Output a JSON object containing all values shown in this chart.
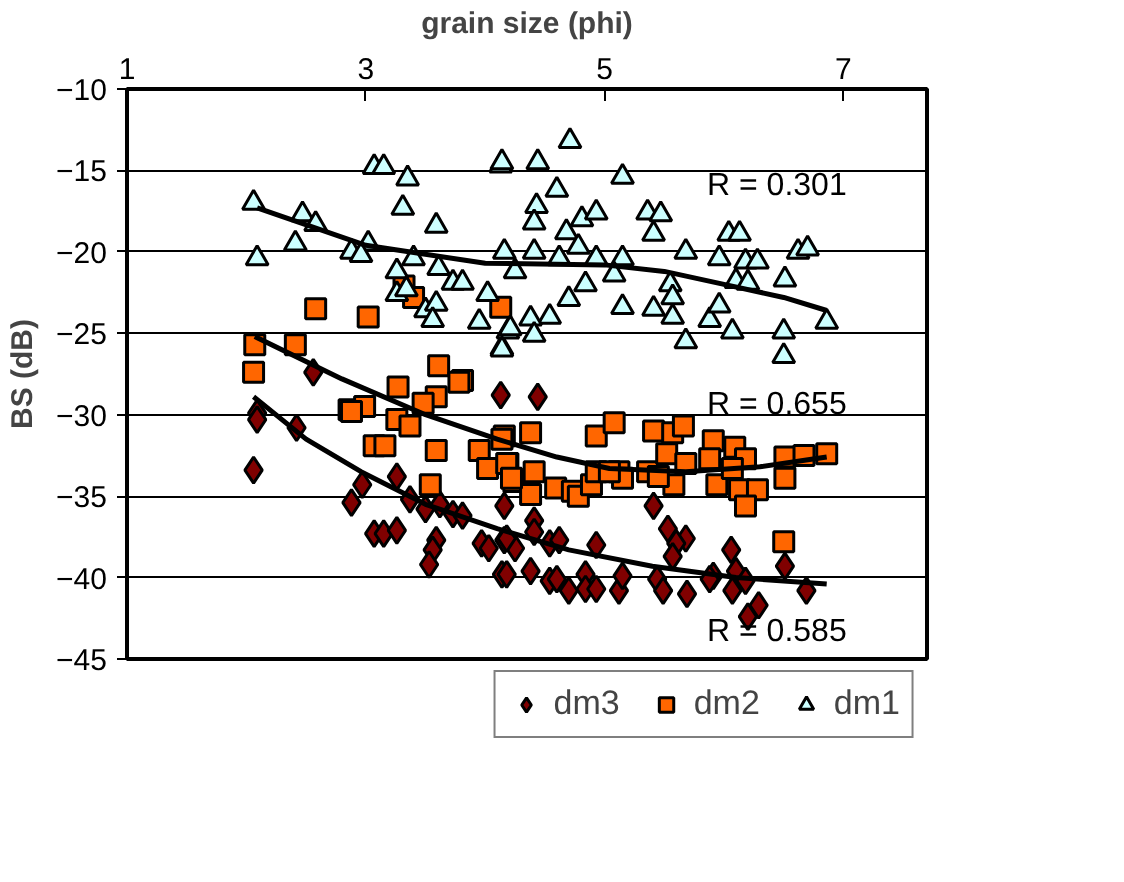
{
  "chart_data": {
    "type": "scatter",
    "xlabel": "grain size (phi)",
    "ylabel": "BS (dB)",
    "xlim": [
      1,
      7.7
    ],
    "xticks": [
      1,
      3,
      5,
      7
    ],
    "ylim": [
      -45,
      -10
    ],
    "yticks": [
      -45,
      -40,
      -35,
      -30,
      -25,
      -20,
      -15,
      -10
    ],
    "grid": "y",
    "legend": "bottom",
    "series": [
      {
        "name": "dm3",
        "color": "#800000",
        "marker": "diamond",
        "x": [
          2.56,
          4.13,
          2.09,
          2.09,
          2.42,
          2.06,
          2.97,
          2.88,
          3.26,
          3.37,
          3.5,
          3.62,
          3.73,
          3.81,
          3.07,
          3.15,
          3.26,
          3.59,
          3.56,
          3.53,
          4.16,
          3.97,
          4.03,
          4.16,
          4.25,
          4.14,
          4.44,
          4.41,
          4.18,
          4.41,
          4.54,
          4.62,
          4.93,
          4.18,
          4.38,
          4.54,
          4.6,
          4.7,
          4.84,
          4.84,
          4.93,
          5.12,
          5.15,
          5.41,
          5.53,
          5.68,
          5.6,
          5.57,
          5.44,
          5.49,
          5.69,
          5.91,
          5.88,
          6.06,
          6.1,
          6.07,
          6.18,
          6.2,
          6.29,
          6.51,
          6.69
        ],
        "values": [
          -27.4,
          -28.8,
          -29.9,
          -30.3,
          -30.8,
          -33.4,
          -34.3,
          -35.4,
          -33.8,
          -35.2,
          -35.8,
          -35.5,
          -36.1,
          -36.2,
          -37.3,
          -37.3,
          -37.1,
          -37.7,
          -38.3,
          -39.2,
          -35.6,
          -37.9,
          -38.2,
          -37.7,
          -38.2,
          -39.8,
          -28.9,
          -36.5,
          -37.6,
          -37.2,
          -37.9,
          -37.7,
          -38.0,
          -39.8,
          -39.6,
          -40.2,
          -40.1,
          -40.8,
          -39.8,
          -40.7,
          -40.7,
          -40.8,
          -39.9,
          -35.6,
          -37.0,
          -37.6,
          -37.9,
          -38.7,
          -40.1,
          -40.8,
          -41.0,
          -39.9,
          -40.1,
          -38.3,
          -39.6,
          -40.8,
          -40.2,
          -42.4,
          -41.7,
          -39.3,
          -40.8
        ]
      },
      {
        "name": "dm2",
        "color": "#ff6600",
        "marker": "square",
        "x": [
          2.58,
          3.02,
          2.07,
          2.41,
          2.06,
          3.32,
          3.4,
          4.13,
          3.61,
          3.81,
          3.27,
          2.86,
          2.99,
          3.59,
          3.78,
          3.48,
          2.88,
          3.26,
          3.37,
          3.07,
          3.16,
          3.59,
          3.95,
          4.16,
          4.19,
          4.02,
          4.24,
          3.54,
          4.14,
          4.18,
          4.38,
          4.41,
          4.38,
          4.22,
          4.59,
          4.73,
          4.78,
          4.89,
          4.93,
          4.93,
          5.08,
          5.12,
          5.15,
          5.36,
          5.41,
          5.57,
          5.66,
          5.52,
          5.58,
          5.45,
          5.68,
          5.91,
          5.88,
          6.09,
          6.18,
          5.94,
          6.13,
          6.28,
          6.18,
          6.07,
          6.51,
          6.67,
          6.86,
          6.51,
          6.5,
          5.04
        ],
        "values": [
          -23.5,
          -24.0,
          -25.7,
          -25.7,
          -27.4,
          -22.1,
          -22.8,
          -23.4,
          -27.0,
          -27.9,
          -28.3,
          -29.7,
          -29.5,
          -28.9,
          -28.0,
          -29.3,
          -29.8,
          -30.3,
          -30.7,
          -31.9,
          -31.9,
          -32.2,
          -32.2,
          -31.3,
          -33.0,
          -33.3,
          -34.1,
          -34.3,
          -31.5,
          -33.0,
          -31.1,
          -33.5,
          -34.9,
          -33.9,
          -34.5,
          -34.7,
          -35.0,
          -34.3,
          -33.5,
          -31.3,
          -30.5,
          -33.5,
          -33.9,
          -33.5,
          -31.0,
          -31.1,
          -30.7,
          -32.4,
          -34.3,
          -33.8,
          -33.0,
          -31.6,
          -32.7,
          -32.0,
          -32.7,
          -34.3,
          -34.6,
          -34.6,
          -35.6,
          -33.3,
          -32.6,
          -32.5,
          -32.4,
          -33.9,
          -37.8,
          -33.5
        ]
      },
      {
        "name": "dm1",
        "color": "#ccffff",
        "marker": "triangle",
        "x": [
          2.06,
          2.09,
          2.47,
          2.58,
          2.41,
          3.07,
          3.15,
          3.35,
          3.31,
          3.59,
          2.88,
          3.02,
          2.96,
          3.26,
          3.4,
          3.61,
          3.73,
          3.81,
          3.26,
          3.34,
          3.5,
          3.59,
          3.56,
          4.02,
          3.95,
          4.16,
          4.25,
          4.13,
          4.14,
          4.19,
          4.71,
          4.14,
          4.44,
          4.6,
          5.15,
          4.43,
          4.41,
          4.81,
          4.93,
          4.68,
          5.36,
          5.47,
          5.41,
          4.41,
          4.62,
          4.78,
          4.93,
          5.15,
          5.08,
          4.84,
          4.7,
          4.54,
          4.38,
          4.21,
          4.41,
          4.14,
          5.15,
          5.41,
          5.55,
          5.57,
          5.57,
          5.68,
          5.68,
          5.88,
          5.96,
          6.07,
          6.04,
          6.13,
          5.96,
          6.18,
          6.28,
          6.1,
          6.2,
          6.51,
          6.62,
          6.7,
          6.5,
          6.5,
          6.86
        ],
        "values": [
          -17.0,
          -20.4,
          -17.7,
          -18.3,
          -19.5,
          -14.8,
          -14.8,
          -15.5,
          -17.3,
          -18.4,
          -20.0,
          -19.5,
          -20.2,
          -21.2,
          -20.4,
          -21.0,
          -21.9,
          -21.9,
          -22.6,
          -22.3,
          -23.6,
          -23.2,
          -24.2,
          -22.6,
          -24.3,
          -20.0,
          -21.2,
          -14.7,
          -25.9,
          -24.9,
          -13.2,
          -14.5,
          -14.5,
          -16.2,
          -15.4,
          -17.2,
          -18.2,
          -18.0,
          -17.6,
          -18.8,
          -17.6,
          -17.7,
          -18.9,
          -20.0,
          -20.4,
          -19.7,
          -20.4,
          -20.4,
          -21.4,
          -22.0,
          -22.9,
          -24.0,
          -24.1,
          -24.7,
          -25.1,
          -26.0,
          -23.4,
          -23.5,
          -22.0,
          -22.8,
          -24.0,
          -20.0,
          -25.5,
          -24.2,
          -23.3,
          -24.9,
          -18.9,
          -18.9,
          -20.4,
          -20.6,
          -20.6,
          -21.8,
          -21.9,
          -21.7,
          -20.0,
          -19.8,
          -24.9,
          -26.4,
          -24.3
        ]
      },
      {
        "type": "line",
        "color": "#000000",
        "x": [
          2.06,
          2.5,
          2.96,
          3.5,
          4.1,
          4.7,
          5.4,
          6.1,
          6.86
        ],
        "values": [
          -28.9,
          -31.5,
          -33.5,
          -35.5,
          -37.0,
          -38.3,
          -39.3,
          -40.0,
          -40.4
        ]
      },
      {
        "type": "line",
        "color": "#000000",
        "x": [
          2.07,
          2.8,
          3.5,
          4.1,
          4.6,
          5.04,
          5.68,
          6.3,
          6.86
        ],
        "values": [
          -25.2,
          -27.8,
          -30.0,
          -31.5,
          -32.6,
          -33.3,
          -33.5,
          -33.2,
          -32.6
        ]
      },
      {
        "type": "line",
        "color": "#000000",
        "x": [
          2.09,
          3.0,
          4.0,
          5.0,
          5.5,
          6.0,
          6.5,
          6.86
        ],
        "values": [
          -17.3,
          -19.6,
          -20.7,
          -20.8,
          -21.2,
          -22.0,
          -22.8,
          -23.6
        ]
      }
    ],
    "annotations": [
      "R = 0.585",
      "R = 0.655",
      "R = 0.301"
    ]
  }
}
